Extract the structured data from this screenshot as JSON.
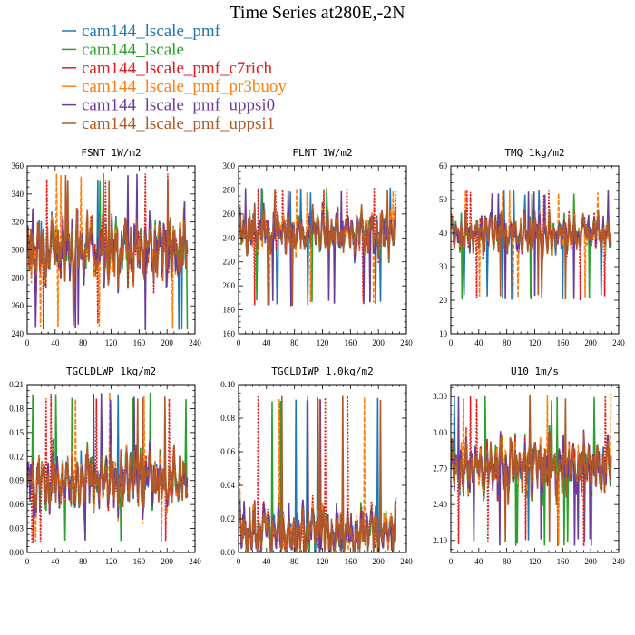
{
  "figure": {
    "title": "Time Series at280E,-2N"
  },
  "legend": {
    "entries": [
      {
        "label": "cam144_lscale_pmf",
        "color": "#1f77b4"
      },
      {
        "label": "cam144_lscale",
        "color": "#2ca02c"
      },
      {
        "label": "cam144_lscale_pmf_c7rich",
        "color": "#e31a1c"
      },
      {
        "label": "cam144_lscale_pmf_pr3buoy",
        "color": "#ff7f0e"
      },
      {
        "label": "cam144_lscale_pmf_uppsi0",
        "color": "#6a3d9a"
      },
      {
        "label": "cam144_lscale_pmf_uppsi1",
        "color": "#b15928"
      }
    ]
  },
  "chart_data": [
    {
      "type": "line",
      "title": "FSNT 1W/m2",
      "xlim": [
        0,
        240
      ],
      "xticks": [
        0,
        40,
        80,
        120,
        160,
        200,
        240
      ],
      "ylim": [
        240,
        360
      ],
      "yticks": [
        240,
        260,
        280,
        300,
        320,
        340,
        360
      ],
      "ytick_labels": [
        "240",
        "260",
        "280",
        "300",
        "320",
        "340",
        "360"
      ],
      "n_points": 230,
      "series_mean": 300,
      "series_amplitude": 22,
      "series_extent": [
        242,
        355
      ],
      "series": [
        {
          "name": "cam144_lscale_pmf"
        },
        {
          "name": "cam144_lscale"
        },
        {
          "name": "cam144_lscale_pmf_c7rich"
        },
        {
          "name": "cam144_lscale_pmf_pr3buoy"
        },
        {
          "name": "cam144_lscale_pmf_uppsi0"
        },
        {
          "name": "cam144_lscale_pmf_uppsi1"
        }
      ]
    },
    {
      "type": "line",
      "title": "FLNT 1W/m2",
      "xlim": [
        0,
        240
      ],
      "xticks": [
        0,
        40,
        80,
        120,
        160,
        200,
        240
      ],
      "ylim": [
        160,
        300
      ],
      "yticks": [
        160,
        180,
        200,
        220,
        240,
        260,
        280,
        300
      ],
      "ytick_labels": [
        "160",
        "180",
        "200",
        "220",
        "240",
        "260",
        "280",
        "300"
      ],
      "n_points": 226,
      "series_mean": 245,
      "series_amplitude": 16,
      "series_extent": [
        183,
        282
      ],
      "series": [
        {
          "name": "cam144_lscale_pmf"
        },
        {
          "name": "cam144_lscale"
        },
        {
          "name": "cam144_lscale_pmf_c7rich"
        },
        {
          "name": "cam144_lscale_pmf_pr3buoy"
        },
        {
          "name": "cam144_lscale_pmf_uppsi0"
        },
        {
          "name": "cam144_lscale_pmf_uppsi1"
        }
      ]
    },
    {
      "type": "line",
      "title": "TMQ 1kg/m2",
      "xlim": [
        0,
        240
      ],
      "xticks": [
        0,
        40,
        80,
        120,
        160,
        200,
        240
      ],
      "ylim": [
        10,
        60
      ],
      "yticks": [
        10,
        20,
        30,
        40,
        50,
        60
      ],
      "ytick_labels": [
        "10",
        "20",
        "30",
        "40",
        "50",
        "60"
      ],
      "n_points": 230,
      "series_mean": 40,
      "series_amplitude": 5,
      "series_extent": [
        20,
        53
      ],
      "series": [
        {
          "name": "cam144_lscale_pmf"
        },
        {
          "name": "cam144_lscale"
        },
        {
          "name": "cam144_lscale_pmf_c7rich"
        },
        {
          "name": "cam144_lscale_pmf_pr3buoy"
        },
        {
          "name": "cam144_lscale_pmf_uppsi0"
        },
        {
          "name": "cam144_lscale_pmf_uppsi1"
        }
      ]
    },
    {
      "type": "line",
      "title": "TGCLDLWP 1kg/m2",
      "xlim": [
        0,
        240
      ],
      "xticks": [
        0,
        40,
        80,
        120,
        160,
        200,
        240
      ],
      "ylim": [
        0,
        0.21
      ],
      "yticks": [
        0,
        0.03,
        0.06,
        0.09,
        0.12,
        0.15,
        0.18,
        0.21
      ],
      "ytick_labels": [
        "0.00",
        "0.03",
        "0.06",
        "0.09",
        "0.12",
        "0.15",
        "0.18",
        "0.21"
      ],
      "n_points": 230,
      "series_mean": 0.09,
      "series_amplitude": 0.033,
      "series_extent": [
        0.01,
        0.2
      ],
      "series": [
        {
          "name": "cam144_lscale_pmf"
        },
        {
          "name": "cam144_lscale"
        },
        {
          "name": "cam144_lscale_pmf_c7rich"
        },
        {
          "name": "cam144_lscale_pmf_pr3buoy"
        },
        {
          "name": "cam144_lscale_pmf_uppsi0"
        },
        {
          "name": "cam144_lscale_pmf_uppsi1"
        }
      ]
    },
    {
      "type": "line",
      "title": "TGCLDIWP 1.0kg/m2",
      "xlim": [
        0,
        240
      ],
      "xticks": [
        0,
        40,
        80,
        120,
        160,
        200,
        240
      ],
      "ylim": [
        0,
        0.1
      ],
      "yticks": [
        0,
        0.02,
        0.04,
        0.06,
        0.08,
        0.1
      ],
      "ytick_labels": [
        "0.00",
        "0.02",
        "0.04",
        "0.06",
        "0.08",
        "0.10"
      ],
      "n_points": 226,
      "series_mean": 0.012,
      "series_amplitude": 0.013,
      "series_extent": [
        0.0,
        0.094
      ],
      "series": [
        {
          "name": "cam144_lscale_pmf"
        },
        {
          "name": "cam144_lscale"
        },
        {
          "name": "cam144_lscale_pmf_c7rich"
        },
        {
          "name": "cam144_lscale_pmf_pr3buoy"
        },
        {
          "name": "cam144_lscale_pmf_uppsi0"
        },
        {
          "name": "cam144_lscale_pmf_uppsi1"
        }
      ]
    },
    {
      "type": "line",
      "title": "U10 1m/s",
      "xlim": [
        0,
        240
      ],
      "xticks": [
        0,
        40,
        80,
        120,
        160,
        200,
        240
      ],
      "ylim": [
        2.0,
        3.4
      ],
      "yticks": [
        2.1,
        2.4,
        2.7,
        3.0,
        3.3
      ],
      "ytick_labels": [
        "2.10",
        "2.40",
        "2.70",
        "3.00",
        "3.30"
      ],
      "n_points": 230,
      "series_mean": 2.72,
      "series_amplitude": 0.2,
      "series_extent": [
        2.05,
        3.33
      ],
      "series": [
        {
          "name": "cam144_lscale_pmf"
        },
        {
          "name": "cam144_lscale"
        },
        {
          "name": "cam144_lscale_pmf_c7rich"
        },
        {
          "name": "cam144_lscale_pmf_pr3buoy"
        },
        {
          "name": "cam144_lscale_pmf_uppsi0"
        },
        {
          "name": "cam144_lscale_pmf_uppsi1"
        }
      ]
    }
  ]
}
